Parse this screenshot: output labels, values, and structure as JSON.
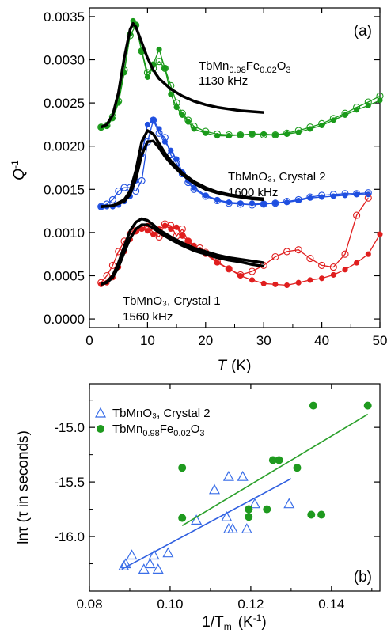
{
  "chart_data": [
    {
      "type": "line",
      "panel_label": "(a)",
      "xlabel": "T",
      "xlabel_unit": "(K)",
      "ylabel": "Q",
      "ylabel_sup": "-1",
      "xlim": [
        0,
        50
      ],
      "ylim": [
        -0.0001,
        0.0036
      ],
      "x_ticks": [
        0,
        10,
        20,
        30,
        40,
        50
      ],
      "y_ticks": [
        "0.0000",
        "0.0005",
        "0.0010",
        "0.0015",
        "0.0020",
        "0.0025",
        "0.0030",
        "0.0035"
      ],
      "annotations": [
        {
          "name": "tbmnfeo-label",
          "parts": [
            "TbMn",
            "0.98",
            "Fe",
            "0.02",
            "O",
            "3"
          ],
          "line2": "1130 kHz"
        },
        {
          "name": "crystal2-label",
          "text": "TbMnO₃, Crystal 2",
          "line2": "1600 kHz"
        },
        {
          "name": "crystal1-label",
          "text": "TbMnO₃, Crystal 1",
          "line2": "1560 kHz"
        }
      ],
      "series": [
        {
          "group": "green",
          "marker": "filled",
          "color": "#1a9a1a",
          "x": [
            2,
            3,
            4,
            5,
            6,
            7,
            7.5,
            8,
            9,
            10,
            11,
            12,
            13,
            14,
            15,
            16,
            17,
            18,
            20,
            22,
            24,
            26,
            28,
            30,
            32,
            34,
            36,
            38,
            40,
            42,
            44,
            46,
            48,
            50
          ],
          "y": [
            0.00222,
            0.00223,
            0.00232,
            0.0025,
            0.00285,
            0.0033,
            0.00345,
            0.0034,
            0.0031,
            0.0028,
            0.00295,
            0.00312,
            0.0029,
            0.0026,
            0.00245,
            0.00236,
            0.00228,
            0.0022,
            0.00215,
            0.00212,
            0.00212,
            0.00213,
            0.00214,
            0.00214,
            0.00213,
            0.00214,
            0.00216,
            0.0022,
            0.00224,
            0.0023,
            0.00236,
            0.00242,
            0.00247,
            0.00253
          ]
        },
        {
          "group": "green",
          "marker": "open",
          "color": "#1a9a1a",
          "x": [
            2,
            3,
            4,
            5,
            6,
            7,
            8,
            9,
            10,
            11,
            12,
            13,
            14,
            15,
            16,
            17,
            18,
            20,
            22,
            24,
            26,
            28,
            30,
            32,
            34,
            36,
            38,
            40,
            42,
            44,
            46,
            48,
            50
          ],
          "y": [
            0.00222,
            0.00224,
            0.00234,
            0.00252,
            0.00288,
            0.00328,
            0.0034,
            0.0031,
            0.00285,
            0.0029,
            0.00298,
            0.0029,
            0.0027,
            0.0025,
            0.00238,
            0.0023,
            0.00223,
            0.00217,
            0.00214,
            0.00213,
            0.00213,
            0.00214,
            0.00213,
            0.00213,
            0.00215,
            0.00218,
            0.00222,
            0.00226,
            0.00232,
            0.00238,
            0.00245,
            0.00251,
            0.00258
          ]
        },
        {
          "group": "blue",
          "marker": "filled",
          "color": "#1f4fe0",
          "x": [
            2,
            3,
            4,
            5,
            6,
            7,
            8,
            9,
            10,
            11,
            12,
            13,
            14,
            15,
            16,
            17,
            18,
            20,
            22,
            24,
            26,
            28,
            30,
            32,
            34,
            36,
            38,
            40,
            42,
            44,
            46,
            48
          ],
          "y": [
            0.0013,
            0.0013,
            0.0013,
            0.00132,
            0.00136,
            0.00142,
            0.0016,
            0.0019,
            0.00225,
            0.0023,
            0.0022,
            0.00205,
            0.00195,
            0.00185,
            0.0017,
            0.0016,
            0.00152,
            0.00143,
            0.00138,
            0.00135,
            0.00134,
            0.00134,
            0.00133,
            0.00134,
            0.00135,
            0.00137,
            0.0014,
            0.00141,
            0.00142,
            0.00143,
            0.00144,
            0.00144
          ]
        },
        {
          "group": "blue",
          "marker": "open",
          "color": "#1f4fe0",
          "x": [
            2,
            3,
            4,
            5,
            6,
            7,
            8,
            9,
            10,
            11,
            12,
            13,
            14,
            15,
            16,
            17,
            18,
            20,
            22,
            24,
            26,
            28,
            30,
            32,
            34,
            36,
            38,
            40,
            42,
            44,
            46,
            48
          ],
          "y": [
            0.0013,
            0.00133,
            0.00138,
            0.00148,
            0.00152,
            0.00152,
            0.00148,
            0.0016,
            0.00205,
            0.0023,
            0.00215,
            0.0021,
            0.0019,
            0.0018,
            0.00168,
            0.00158,
            0.0015,
            0.00142,
            0.00137,
            0.00134,
            0.00133,
            0.00132,
            0.00133,
            0.00134,
            0.00136,
            0.00138,
            0.00141,
            0.00143,
            0.00144,
            0.00145,
            0.00145,
            0.00146
          ]
        },
        {
          "group": "red",
          "marker": "filled",
          "color": "#e01e1e",
          "x": [
            2,
            3,
            4,
            5,
            6,
            7,
            8,
            9,
            10,
            11,
            12,
            13,
            14,
            15,
            16,
            17,
            18,
            19,
            20,
            22,
            24,
            26,
            28,
            30,
            32,
            34,
            36,
            38,
            40,
            42,
            44,
            46,
            48,
            50
          ],
          "y": [
            0.0004,
            0.00042,
            0.00048,
            0.0006,
            0.00078,
            0.00092,
            0.00101,
            0.00104,
            0.00102,
            0.00098,
            0.00104,
            0.00108,
            0.00104,
            0.00106,
            0.00096,
            0.0009,
            0.00085,
            0.0008,
            0.00075,
            0.00065,
            0.00058,
            0.0005,
            0.00045,
            0.00041,
            0.0004,
            0.00039,
            0.00042,
            0.00045,
            0.00047,
            0.00051,
            0.00057,
            0.00065,
            0.00075,
            0.00098
          ]
        },
        {
          "group": "red",
          "marker": "open",
          "color": "#e01e1e",
          "x": [
            2,
            3,
            4,
            5,
            6,
            7,
            8,
            9,
            10,
            11,
            12,
            13,
            14,
            15,
            16,
            17,
            18,
            19,
            20,
            22,
            24,
            26,
            28,
            30,
            32,
            34,
            36,
            38,
            40,
            42,
            44,
            46,
            48
          ],
          "y": [
            0.00042,
            0.0005,
            0.00062,
            0.00078,
            0.0009,
            0.00098,
            0.00102,
            0.00105,
            0.00107,
            0.001,
            0.00095,
            0.0011,
            0.00108,
            0.00096,
            0.00104,
            0.0009,
            0.00082,
            0.00082,
            0.00077,
            0.00066,
            0.00058,
            0.00051,
            0.00055,
            0.00062,
            0.00072,
            0.00078,
            0.0008,
            0.0007,
            0.00062,
            0.0006,
            0.00075,
            0.0012,
            0.0014
          ]
        },
        {
          "group": "fit",
          "marker": "none",
          "color": "#000000",
          "width": 3.5,
          "x": [
            2,
            3,
            4,
            5,
            6,
            7,
            7.5,
            8,
            9,
            10,
            11,
            12,
            14,
            16,
            18,
            20,
            22,
            24,
            26,
            28,
            30
          ],
          "y": [
            0.00222,
            0.00225,
            0.00236,
            0.00262,
            0.00302,
            0.00335,
            0.00342,
            0.00338,
            0.0032,
            0.00302,
            0.00288,
            0.00278,
            0.00266,
            0.00258,
            0.00252,
            0.00248,
            0.00245,
            0.00243,
            0.00241,
            0.0024,
            0.00239
          ]
        },
        {
          "group": "fit",
          "marker": "none",
          "color": "#000000",
          "width": 3.5,
          "x": [
            2,
            4,
            6,
            7,
            8,
            9,
            10,
            11,
            12,
            13,
            14,
            16,
            18,
            20,
            22,
            24,
            26,
            28,
            30
          ],
          "y": [
            0.0013,
            0.00131,
            0.00138,
            0.00148,
            0.00172,
            0.00205,
            0.00218,
            0.00214,
            0.00203,
            0.00192,
            0.00183,
            0.00169,
            0.00159,
            0.00152,
            0.00147,
            0.00144,
            0.00142,
            0.0014,
            0.00139
          ]
        },
        {
          "group": "fit",
          "marker": "none",
          "color": "#000000",
          "width": 3.5,
          "x": [
            2,
            4,
            6,
            7,
            8,
            9,
            10,
            11,
            12,
            13,
            14,
            16,
            18,
            20,
            22,
            24,
            26,
            28,
            30
          ],
          "y": [
            0.0013,
            0.00131,
            0.00136,
            0.00144,
            0.00162,
            0.0019,
            0.00205,
            0.00206,
            0.00198,
            0.00188,
            0.0018,
            0.00167,
            0.00157,
            0.0015,
            0.00146,
            0.00143,
            0.00141,
            0.00139,
            0.00138
          ]
        },
        {
          "group": "fit",
          "marker": "none",
          "color": "#000000",
          "width": 3.5,
          "x": [
            2,
            3,
            4,
            5,
            6,
            7,
            8,
            9,
            10,
            11,
            12,
            14,
            16,
            18,
            20,
            22,
            24,
            26,
            28,
            30
          ],
          "y": [
            0.0004,
            0.00043,
            0.0005,
            0.00065,
            0.00084,
            0.00102,
            0.00112,
            0.00116,
            0.00114,
            0.00109,
            0.00103,
            0.00095,
            0.00088,
            0.00082,
            0.00078,
            0.00074,
            0.00071,
            0.00069,
            0.00067,
            0.00065
          ]
        },
        {
          "group": "fit",
          "marker": "none",
          "color": "#000000",
          "width": 3.5,
          "x": [
            2,
            3,
            4,
            5,
            6,
            7,
            8,
            9,
            10,
            11,
            12,
            14,
            16,
            18,
            20,
            22,
            24,
            26,
            28,
            30
          ],
          "y": [
            0.0004,
            0.00042,
            0.00048,
            0.0006,
            0.00077,
            0.00093,
            0.00104,
            0.00109,
            0.00109,
            0.00105,
            0.001,
            0.00092,
            0.00085,
            0.00079,
            0.00075,
            0.00071,
            0.00068,
            0.00066,
            0.00063,
            0.00061
          ]
        }
      ]
    },
    {
      "type": "scatter",
      "panel_label": "(b)",
      "xlabel": "1/T",
      "xlabel_sub": "m",
      "xlabel_unit": "(K",
      "xlabel_unit_sup": "-1",
      "xlabel_close": ")",
      "ylabel": "lnτ  (τ in seconds)",
      "xlim": [
        0.08,
        0.152
      ],
      "ylim": [
        -16.5,
        -14.6
      ],
      "x_ticks": [
        "0.08",
        "0.10",
        "0.12",
        "0.14"
      ],
      "y_ticks": [
        "-16.0",
        "-15.5",
        "-15.0"
      ],
      "legend_position": "top-left",
      "series": [
        {
          "name": "TbMnO₃, Crystal 2",
          "marker": "open-triangle",
          "color": "#3a6ee8",
          "x": [
            0.0885,
            0.089,
            0.0905,
            0.0935,
            0.095,
            0.096,
            0.097,
            0.0995,
            0.1065,
            0.111,
            0.114,
            0.1145,
            0.1145,
            0.1155,
            0.118,
            0.119,
            0.121,
            0.1295
          ],
          "y": [
            -16.27,
            -16.25,
            -16.17,
            -16.3,
            -16.25,
            -16.17,
            -16.3,
            -16.15,
            -15.85,
            -15.57,
            -15.82,
            -15.93,
            -15.45,
            -15.93,
            -15.45,
            -15.93,
            -15.7,
            -15.7
          ],
          "fit": {
            "x": [
              0.088,
              0.13
            ],
            "y": [
              -16.3,
              -15.47
            ],
            "color": "#2f5fe0"
          }
        },
        {
          "name": "TbMn0.98Fe0.02O3",
          "marker": "filled-circle",
          "color": "#1f9a1f",
          "x": [
            0.103,
            0.103,
            0.1195,
            0.1195,
            0.1195,
            0.124,
            0.1255,
            0.127,
            0.1315,
            0.135,
            0.1355,
            0.1375,
            0.149
          ],
          "y": [
            -15.37,
            -15.83,
            -15.75,
            -15.75,
            -15.82,
            -15.75,
            -15.3,
            -15.3,
            -15.37,
            -15.8,
            -14.8,
            -15.8,
            -14.8
          ],
          "fit": {
            "x": [
              0.103,
              0.149
            ],
            "y": [
              -15.9,
              -14.88
            ],
            "color": "#2aa02a"
          }
        }
      ]
    }
  ]
}
